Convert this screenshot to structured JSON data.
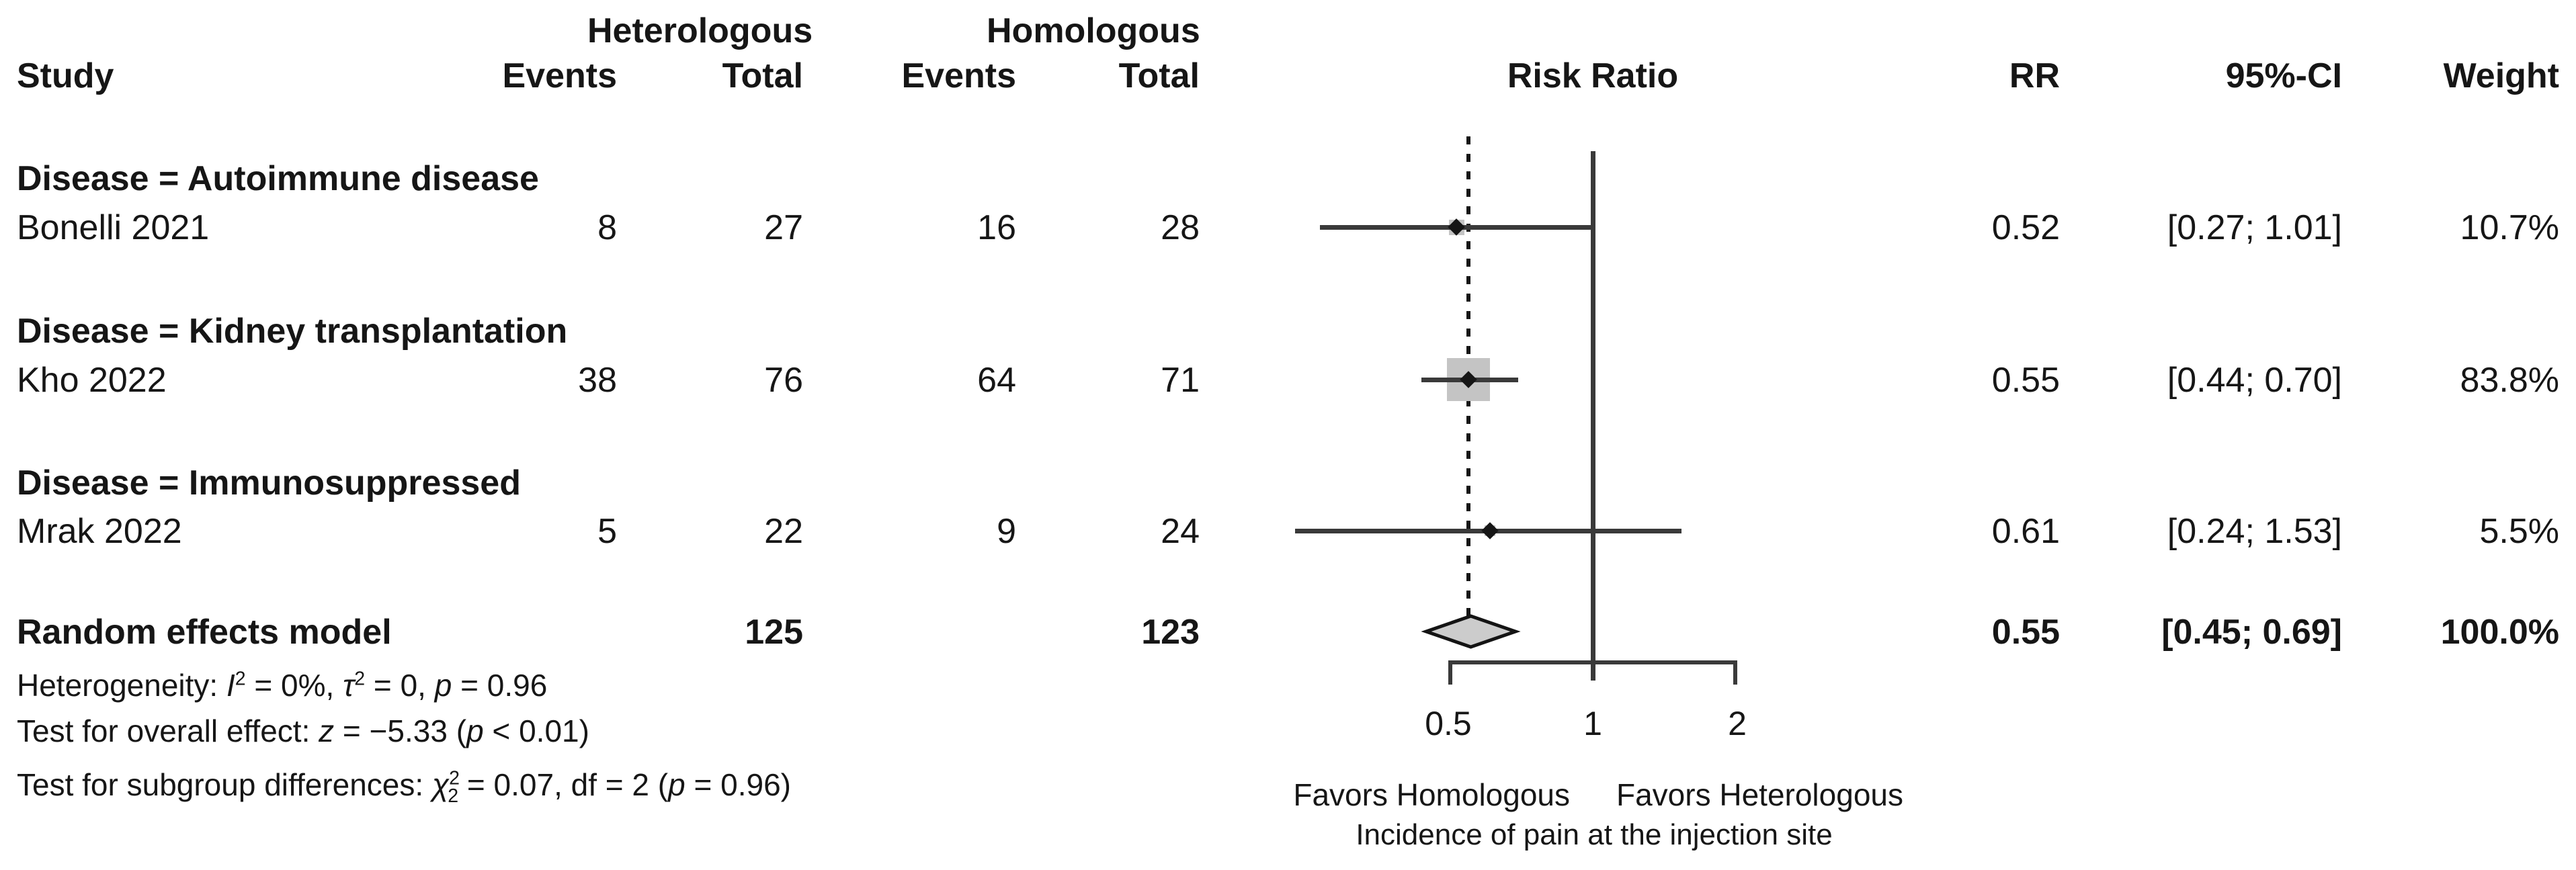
{
  "figure": {
    "group_headers": {
      "heterologous": "Heterologous",
      "homologous": "Homologous"
    },
    "columns": {
      "study": "Study",
      "events": "Events",
      "total": "Total",
      "risk_ratio": "Risk Ratio",
      "rr": "RR",
      "ci": "95%-CI",
      "weight": "Weight"
    },
    "subgroups": [
      {
        "title": "Disease = Autoimmune disease",
        "studies": [
          {
            "name": "Bonelli 2021",
            "het_events": "8",
            "het_total": "27",
            "hom_events": "16",
            "hom_total": "28",
            "rr": "0.52",
            "ci": "[0.27; 1.01]",
            "weight": "10.7%"
          }
        ]
      },
      {
        "title": "Disease = Kidney transplantation",
        "studies": [
          {
            "name": "Kho 2022",
            "het_events": "38",
            "het_total": "76",
            "hom_events": "64",
            "hom_total": "71",
            "rr": "0.55",
            "ci": "[0.44; 0.70]",
            "weight": "83.8%"
          }
        ]
      },
      {
        "title": "Disease = Immunosuppressed",
        "studies": [
          {
            "name": "Mrak 2022",
            "het_events": "5",
            "het_total": "22",
            "hom_events": "9",
            "hom_total": "24",
            "rr": "0.61",
            "ci": "[0.24; 1.53]",
            "weight": "5.5%"
          }
        ]
      }
    ],
    "summary_row": {
      "label": "Random effects model",
      "het_total": "125",
      "hom_total": "123",
      "rr": "0.55",
      "ci": "[0.45; 0.69]",
      "weight": "100.0%"
    },
    "footnotes": {
      "heterogeneity": [
        {
          "t": "Heterogeneity: "
        },
        {
          "t": "I",
          "c": "i"
        },
        {
          "t": "2",
          "c": "sup"
        },
        {
          "t": " = 0%, "
        },
        {
          "t": "τ",
          "c": "i"
        },
        {
          "t": "2",
          "c": "sup"
        },
        {
          "t": " = 0, "
        },
        {
          "t": "p",
          "c": "i"
        },
        {
          "t": " = 0.96"
        }
      ],
      "overall_effect": [
        {
          "t": "Test for overall effect: "
        },
        {
          "t": "z",
          "c": "i"
        },
        {
          "t": " = −5.33 ("
        },
        {
          "t": "p",
          "c": "i"
        },
        {
          "t": " < 0.01)"
        }
      ],
      "subgroup_differences": [
        {
          "t": "Test for subgroup differences: "
        },
        {
          "t": "χ",
          "c": "i"
        },
        {
          "t": "2",
          "c": "sup"
        },
        {
          "t": "2",
          "c": "sub stack"
        },
        {
          "t": " = 0.07, df = 2 ("
        },
        {
          "t": "p",
          "c": "i"
        },
        {
          "t": " = 0.96)"
        }
      ]
    },
    "axis_labels": {
      "favors_left": "Favors Homologous",
      "favors_right": "Favors Heterologous",
      "caption": "Incidence of pain at the injection site"
    }
  },
  "chart_data": {
    "type": "scatter",
    "variant": "forest-plot",
    "title": "Risk Ratio",
    "x_scale": "log",
    "x_ticks": [
      0.5,
      1,
      2
    ],
    "x_axis_range": [
      0.5,
      2
    ],
    "reference_line": 1,
    "studies": [
      {
        "label": "Bonelli 2021",
        "subgroup": "Disease = Autoimmune disease",
        "rr": 0.52,
        "ci_low": 0.27,
        "ci_high": 1.01,
        "weight_pct": 10.7,
        "het_events": 8,
        "het_total": 27,
        "hom_events": 16,
        "hom_total": 28
      },
      {
        "label": "Kho 2022",
        "subgroup": "Disease = Kidney transplantation",
        "rr": 0.55,
        "ci_low": 0.44,
        "ci_high": 0.7,
        "weight_pct": 83.8,
        "het_events": 38,
        "het_total": 76,
        "hom_events": 64,
        "hom_total": 71
      },
      {
        "label": "Mrak 2022",
        "subgroup": "Disease = Immunosuppressed",
        "rr": 0.61,
        "ci_low": 0.24,
        "ci_high": 1.53,
        "weight_pct": 5.5,
        "het_events": 5,
        "het_total": 22,
        "hom_events": 9,
        "hom_total": 24
      }
    ],
    "summary": {
      "label": "Random effects model",
      "rr": 0.55,
      "ci_low": 0.45,
      "ci_high": 0.69,
      "weight_pct": 100.0,
      "het_total": 125,
      "hom_total": 123
    }
  }
}
